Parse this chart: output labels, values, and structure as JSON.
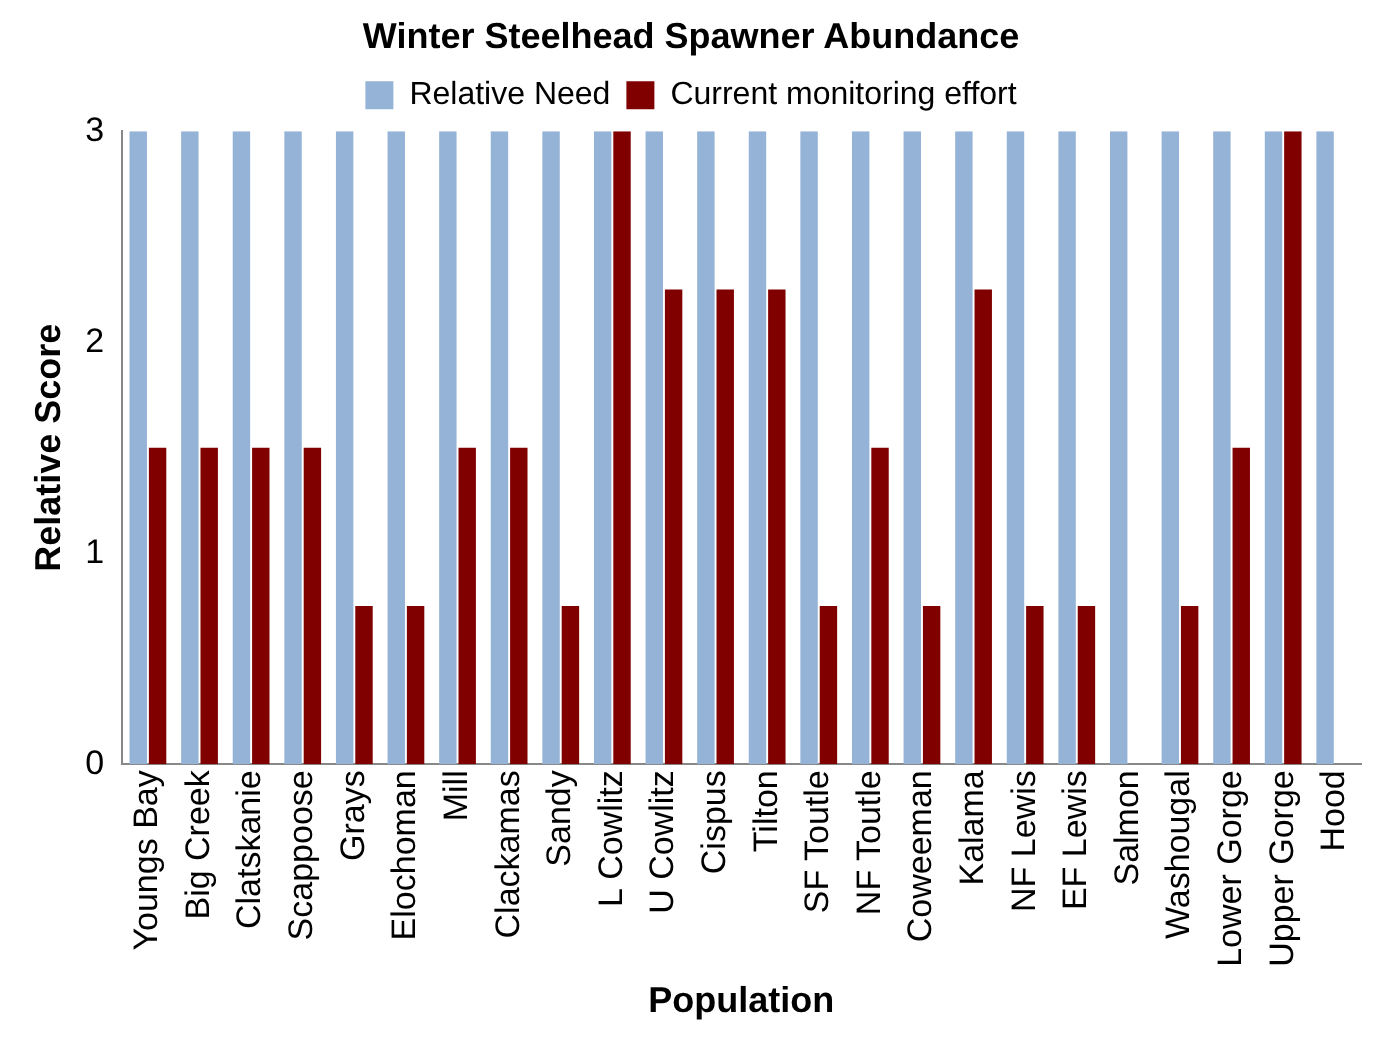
{
  "chart_data": {
    "type": "bar",
    "title": "Winter Steelhead Spawner Abundance",
    "xlabel": "Population",
    "ylabel": "Relative Score",
    "categories": [
      "Youngs Bay",
      "Big Creek",
      "Clatskanie",
      "Scappoose",
      "Grays",
      "Elochoman",
      "Mill",
      "Clackamas",
      "Sandy",
      "L Cowlitz",
      "U Cowlitz",
      "Cispus",
      "Tilton",
      "SF Toutle",
      "NF Toutle",
      "Coweeman",
      "Kalama",
      "NF Lewis",
      "EF Lewis",
      "Salmon",
      "Washougal",
      "Lower Gorge",
      "Upper Gorge",
      "Hood"
    ],
    "series": [
      {
        "name": "Relative Need",
        "color": "#95b3d7",
        "values": [
          3,
          3,
          3,
          3,
          3,
          3,
          3,
          3,
          3,
          3,
          3,
          3,
          3,
          3,
          3,
          3,
          3,
          3,
          3,
          3,
          3,
          3,
          3,
          3
        ]
      },
      {
        "name": "Current monitoring effort",
        "color": "#800000",
        "values": [
          1.5,
          1.5,
          1.5,
          1.5,
          0.75,
          0.75,
          1.5,
          1.5,
          0.75,
          3,
          2.25,
          2.25,
          2.25,
          0.75,
          1.5,
          0.75,
          2.25,
          0.75,
          0.75,
          0,
          0.75,
          1.5,
          3,
          0
        ]
      }
    ],
    "ylim": [
      0,
      3
    ],
    "yticks": [
      0,
      1,
      2,
      3
    ],
    "grid": false,
    "legend": "top"
  }
}
